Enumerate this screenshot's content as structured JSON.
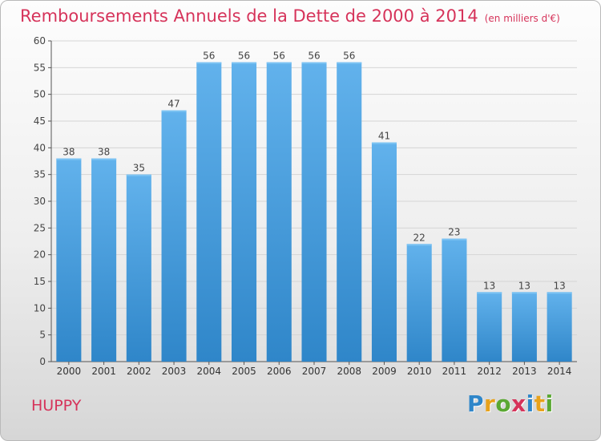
{
  "title": "Remboursements Annuels de la Dette de 2000 à 2014",
  "unit_note": "(en milliers d'€)",
  "commune": "HUPPY",
  "logo_text": "Proxiti",
  "colors": {
    "title": "#d6335a",
    "bar_top": "#62b2ec",
    "bar_bottom": "#2f86c9",
    "axis": "#555555",
    "grid": "#d5d5d5"
  },
  "chart_data": {
    "type": "bar",
    "title": "Remboursements Annuels de la Dette de 2000 à 2014",
    "xlabel": "",
    "ylabel": "",
    "categories": [
      "2000",
      "2001",
      "2002",
      "2003",
      "2004",
      "2005",
      "2006",
      "2007",
      "2008",
      "2009",
      "2010",
      "2011",
      "2012",
      "2013",
      "2014"
    ],
    "values": [
      38,
      38,
      35,
      47,
      56,
      56,
      56,
      56,
      56,
      41,
      22,
      23,
      13,
      13,
      13
    ],
    "ylim": [
      0,
      60
    ],
    "yticks": [
      0,
      5,
      10,
      15,
      20,
      25,
      30,
      35,
      40,
      45,
      50,
      55,
      60
    ],
    "grid": true,
    "data_labels": true
  }
}
